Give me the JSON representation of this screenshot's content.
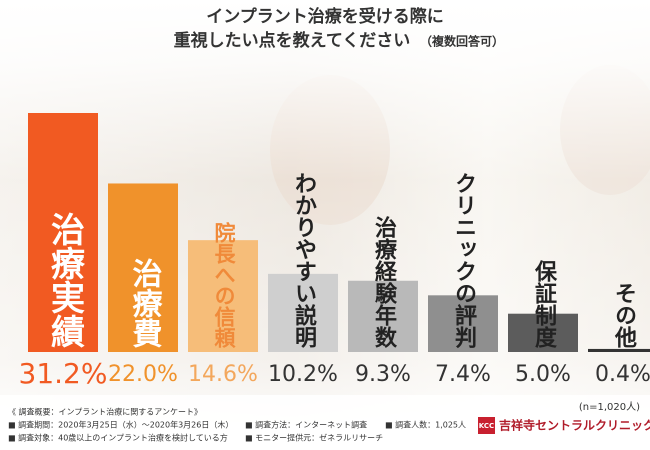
{
  "chart_data": {
    "type": "bar",
    "title": [
      "インプラント治療を受ける際に",
      "重視したい点を教えてください"
    ],
    "subtitle": "（複数回答可）",
    "categories": [
      "治療実績",
      "治療費",
      "院長への信頼",
      "わかりやすい説明",
      "治療経験年数",
      "クリニックの評判",
      "保証制度",
      "その他"
    ],
    "values": [
      31.2,
      22.0,
      14.6,
      10.2,
      9.3,
      7.4,
      5.0,
      0.4
    ],
    "value_labels": [
      "31.2%",
      "22.0%",
      "14.6%",
      "10.2%",
      "9.3%",
      "7.4%",
      "5.0%",
      "0.4%"
    ],
    "colors": [
      "#f15a22",
      "#f0922b",
      "#f6bd79",
      "#cfcfcf",
      "#b9b9b9",
      "#8f8f8f",
      "#5c5c5c",
      "#333333"
    ],
    "label_colors": [
      "#ffffff",
      "#ffffff",
      "#f08a3a",
      "#222222",
      "#222222",
      "#222222",
      "#222222",
      "#222222"
    ],
    "value_label_colors": [
      "#f15a22",
      "#f0922b",
      "#f3a75c",
      "#333333",
      "#333333",
      "#333333",
      "#333333",
      "#333333"
    ],
    "note": "(n=1,020人)"
  },
  "footer": {
    "heading": "《 調査概要：インプラント治療に関するアンケート》",
    "items": [
      "■ 調査期間：2020年3月25日（水）〜2020年3月26日（木）",
      "■ 調査対象：40歳以上のインプラント治療を検討している方",
      "■ 調査方法：インターネット調査",
      "■ モニター提供元：ゼネラルリサーチ",
      "■ 調査人数：1,025人"
    ],
    "logo_mark": "KCC",
    "logo_text": "吉祥寺セントラルクリニック"
  }
}
